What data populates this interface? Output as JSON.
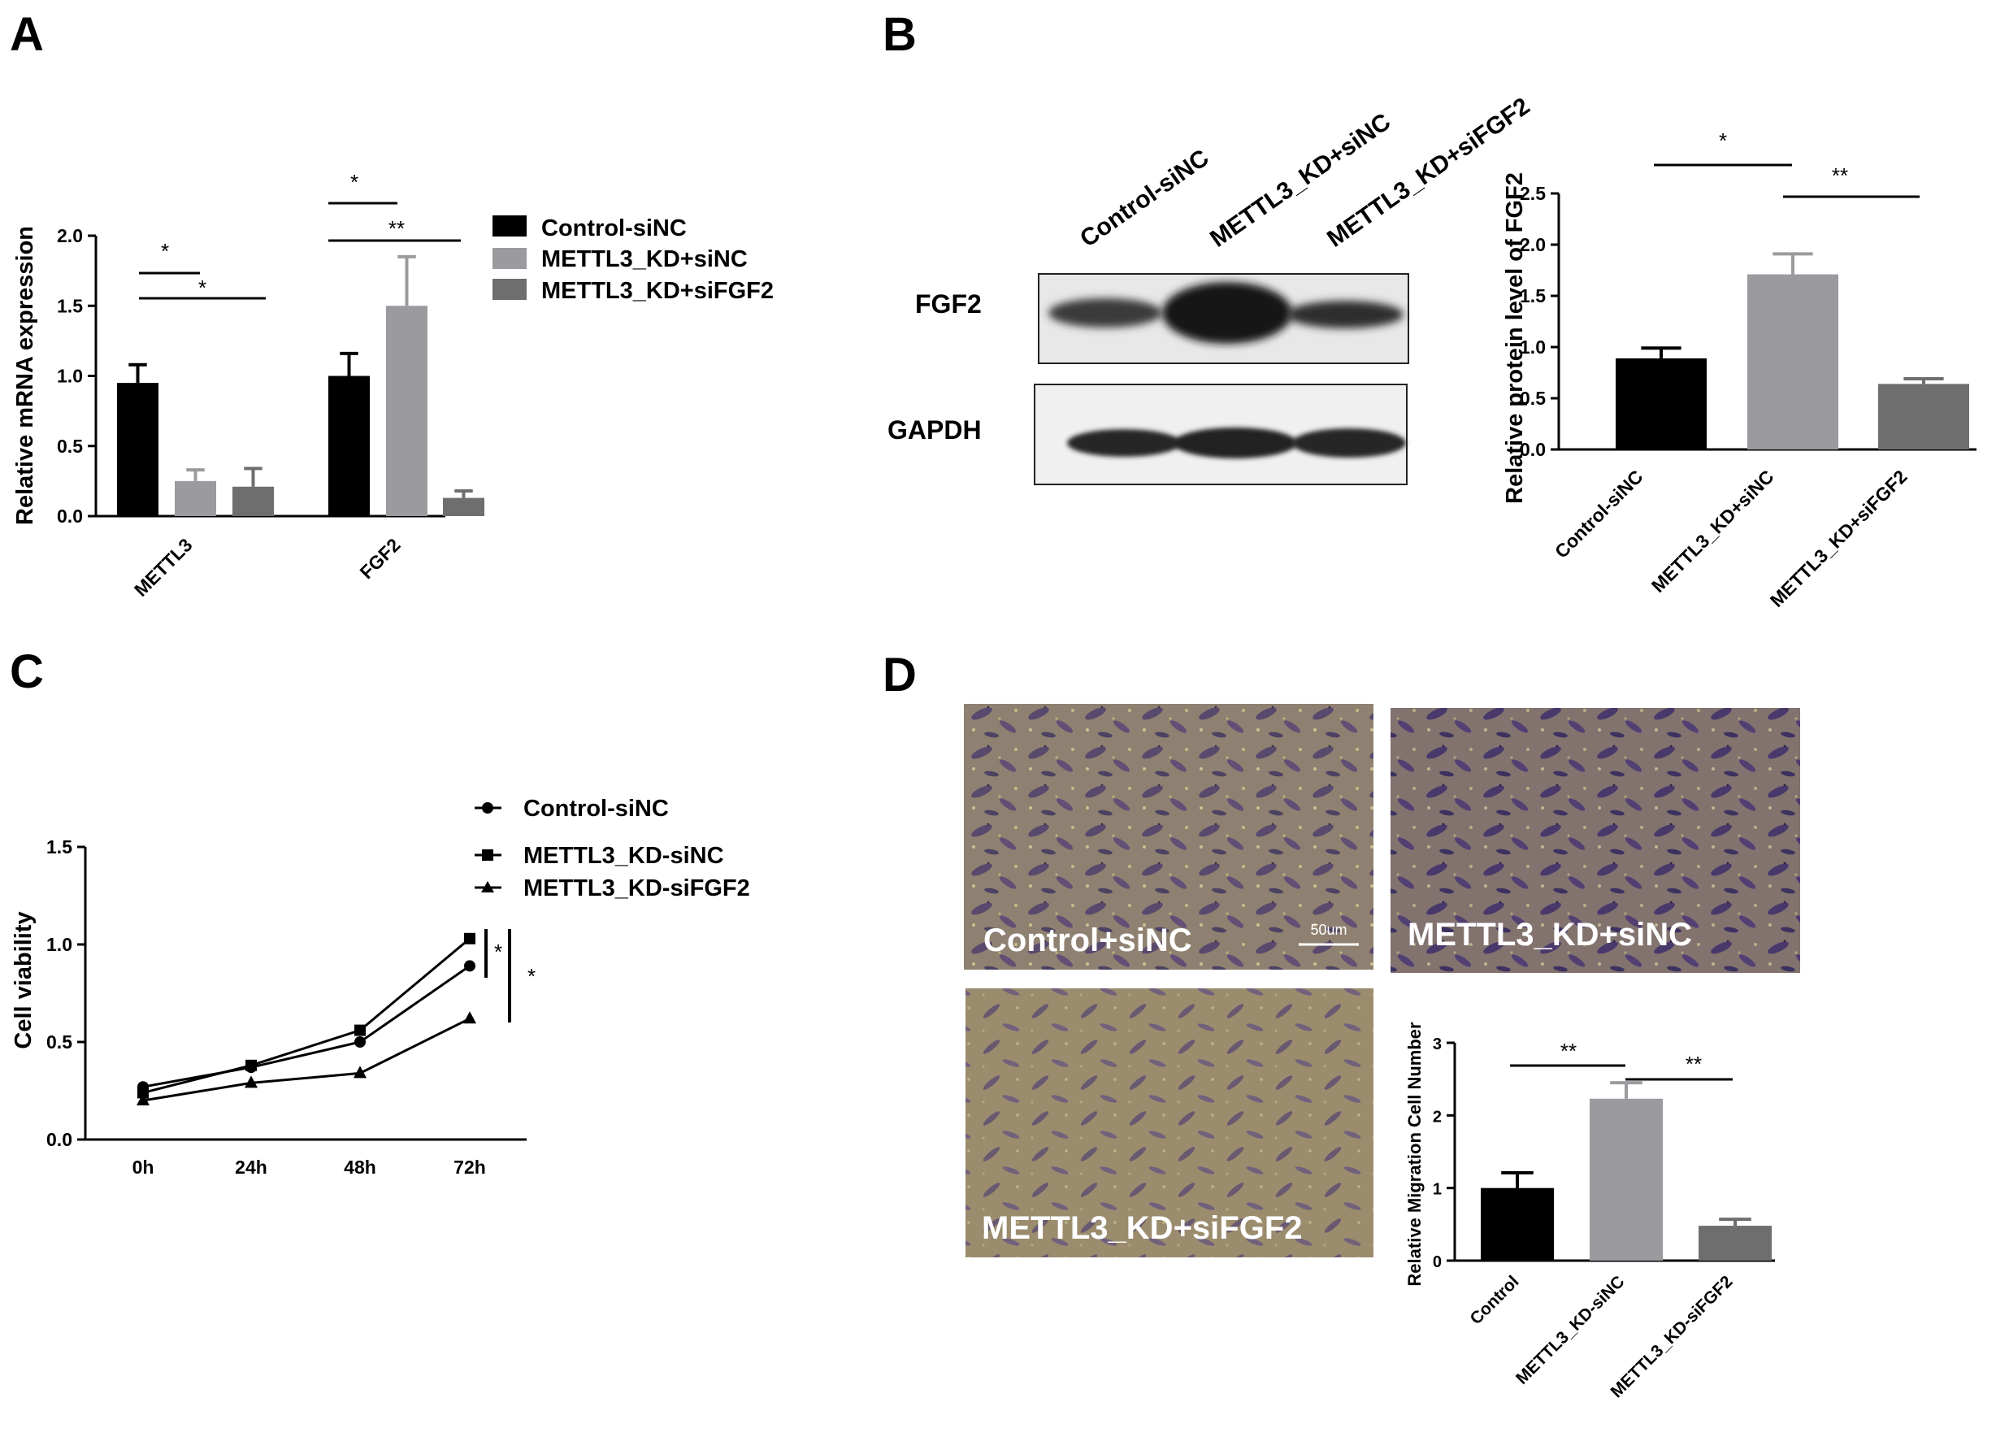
{
  "panels": {
    "A": {
      "label": "A"
    },
    "B": {
      "label": "B"
    },
    "C": {
      "label": "C"
    },
    "D": {
      "label": "D"
    }
  },
  "blot": {
    "lanes": [
      "Control-siNC",
      "METTL3_KD+siNC",
      "METTL3_KD+siFGF2"
    ],
    "rows": [
      "FGF2",
      "GAPDH"
    ]
  },
  "micrographs": {
    "images": [
      "Control+siNC",
      "METTL3_KD+siNC",
      "METTL3_KD+siFGF2"
    ],
    "scale_bar": "50um"
  },
  "colors": {
    "black": "#000000",
    "lightgray": "#9b9b9f",
    "darkgray": "#6e6e6e"
  },
  "chart_data": [
    {
      "id": "A",
      "type": "bar",
      "categories": [
        "METTL3",
        "FGF2"
      ],
      "series": [
        {
          "name": "Control-siNC",
          "values": [
            0.95,
            1.0
          ],
          "errors": [
            0.13,
            0.16
          ],
          "color": "#000000"
        },
        {
          "name": "METTL3_KD+siNC",
          "values": [
            0.25,
            1.5
          ],
          "errors": [
            0.08,
            0.35
          ],
          "color": "#9b9b9f"
        },
        {
          "name": "METTL3_KD+siFGF2",
          "values": [
            0.21,
            0.13
          ],
          "errors": [
            0.13,
            0.05
          ],
          "color": "#6e6e6e"
        }
      ],
      "ylabel": "Relative mRNA expression",
      "ylim": [
        0,
        2.0
      ],
      "yticks": [
        "0.0",
        "0.5",
        "1.0",
        "1.5",
        "2.0"
      ],
      "significance": [
        "*",
        "*",
        "*",
        "**"
      ],
      "legend": "right"
    },
    {
      "id": "B",
      "type": "bar",
      "categories": [
        "Control-siNC",
        "METTL3_KD+siNC",
        "METTL3_KD+siFGF2"
      ],
      "values": [
        0.89,
        1.71,
        0.64
      ],
      "errors": [
        0.1,
        0.2,
        0.05
      ],
      "colors": [
        "#000000",
        "#9b9b9f",
        "#6e6e6e"
      ],
      "ylabel": "Relative protein level of FGF2",
      "ylim": [
        0,
        2.5
      ],
      "yticks": [
        "0.0",
        "0.5",
        "1.0",
        "1.5",
        "2.0",
        "2.5"
      ],
      "significance": [
        "*",
        "**"
      ]
    },
    {
      "id": "C",
      "type": "line",
      "x": [
        "0h",
        "24h",
        "48h",
        "72h"
      ],
      "series": [
        {
          "name": "Control-siNC",
          "marker": "circle",
          "values": [
            0.27,
            0.37,
            0.5,
            0.89
          ]
        },
        {
          "name": "METTL3_KD-siNC",
          "marker": "square",
          "values": [
            0.24,
            0.38,
            0.56,
            1.03
          ]
        },
        {
          "name": "METTL3_KD-siFGF2",
          "marker": "triangle",
          "values": [
            0.2,
            0.29,
            0.34,
            0.62
          ]
        }
      ],
      "ylabel": "Cell viability",
      "ylim": [
        0,
        1.5
      ],
      "yticks": [
        "0.0",
        "0.5",
        "1.0",
        "1.5"
      ],
      "significance": [
        "*",
        "*"
      ],
      "legend": "top-right"
    },
    {
      "id": "D",
      "type": "bar",
      "categories": [
        "Control",
        "METTL3_KD-siNC",
        "METTL3_KD-siFGF2"
      ],
      "values": [
        1.0,
        2.23,
        0.48
      ],
      "errors": [
        0.21,
        0.22,
        0.09
      ],
      "colors": [
        "#000000",
        "#9b9b9f",
        "#6e6e6e"
      ],
      "ylabel": "Relative Migration Cell Number",
      "ylim": [
        0,
        3
      ],
      "yticks": [
        "0",
        "1",
        "2",
        "3"
      ],
      "significance": [
        "**",
        "**"
      ]
    }
  ]
}
